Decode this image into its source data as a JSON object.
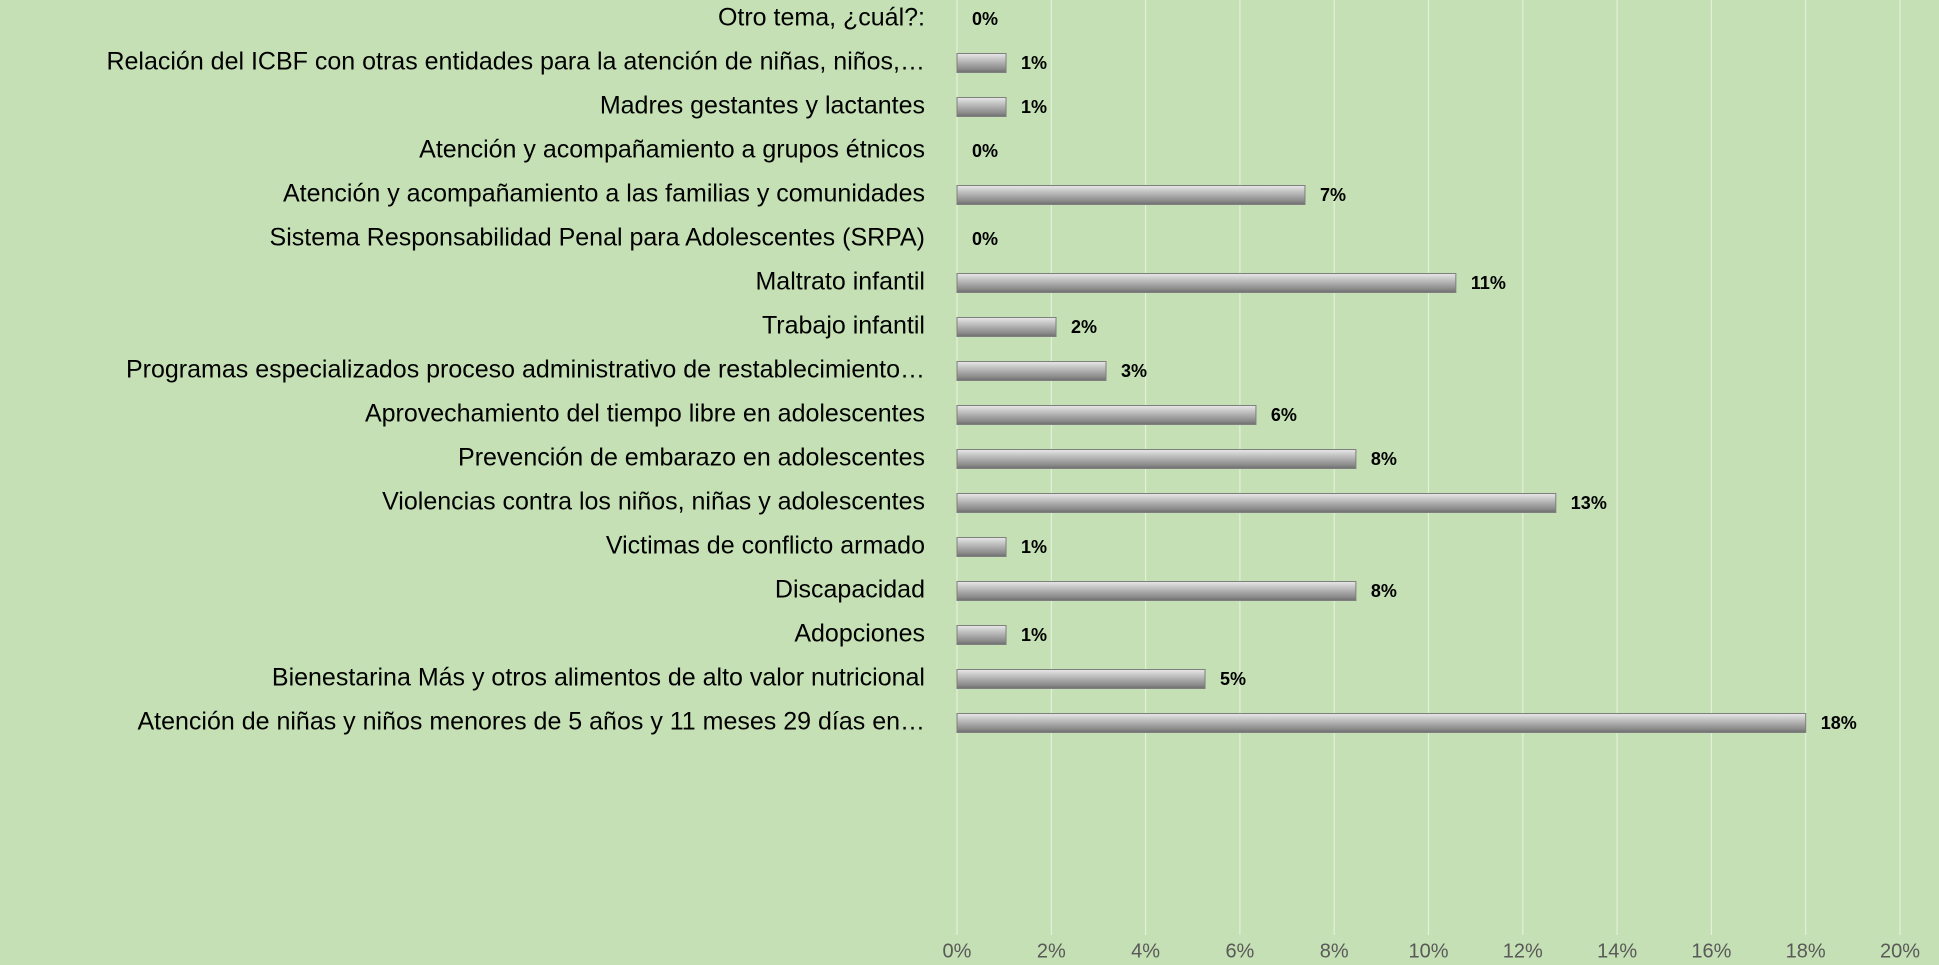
{
  "chart_data": {
    "type": "hbar",
    "categories": [
      "Otro tema, ¿cuál?:",
      "Relación del ICBF con otras entidades para la atención de niñas, niños,…",
      "Madres gestantes y lactantes",
      "Atención y acompañamiento a grupos étnicos",
      "Atención y acompañamiento a las familias y comunidades",
      "Sistema Responsabilidad Penal para Adolescentes (SRPA)",
      "Maltrato infantil",
      "Trabajo infantil",
      "Programas especializados proceso administrativo de restablecimiento…",
      "Aprovechamiento del tiempo libre en adolescentes",
      "Prevención de embarazo en adolescentes",
      "Violencias contra los niños, niñas y adolescentes",
      "Victimas de conflicto armado",
      "Discapacidad",
      "Adopciones",
      "Bienestarina Más y otros alimentos de alto valor nutricional",
      "Atención de niñas y niños menores de 5 años y 11 meses 29 días  en…"
    ],
    "values": [
      0,
      1.04,
      1.04,
      0,
      7.38,
      0,
      10.58,
      2.1,
      3.16,
      6.34,
      8.46,
      12.7,
      1.04,
      8.46,
      1.04,
      5.26,
      18.0
    ],
    "value_labels": [
      "0%",
      "1%",
      "1%",
      "0%",
      "7%",
      "0%",
      "11%",
      "2%",
      "3%",
      "6%",
      "8%",
      "13%",
      "1%",
      "8%",
      "1%",
      "5%",
      "18%"
    ],
    "color": "#a6a6a6",
    "xlim": [
      0,
      20
    ],
    "xticks": [
      {
        "value": 0,
        "label": "0%"
      },
      {
        "value": 2,
        "label": "2%"
      },
      {
        "value": 4,
        "label": "4%"
      },
      {
        "value": 6,
        "label": "6%"
      },
      {
        "value": 8,
        "label": "8%"
      },
      {
        "value": 10,
        "label": "10%"
      },
      {
        "value": 12,
        "label": "12%"
      },
      {
        "value": 14,
        "label": "14%"
      },
      {
        "value": 16,
        "label": "16%"
      },
      {
        "value": 18,
        "label": "18%"
      },
      {
        "value": 20,
        "label": "20%"
      }
    ],
    "grid": true
  }
}
